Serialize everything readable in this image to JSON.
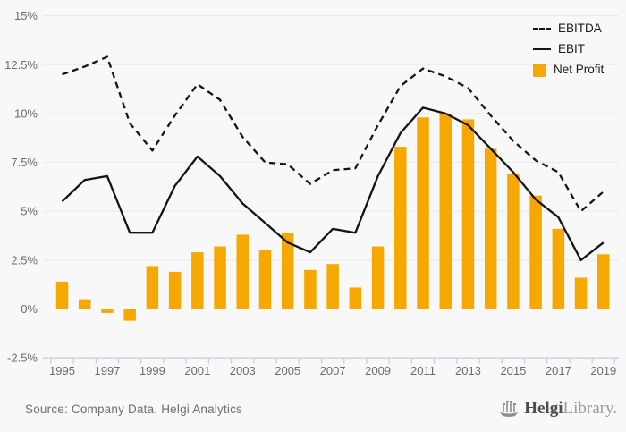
{
  "chart_data": {
    "type": "bar",
    "subtype": "combo-bar-line",
    "title": "",
    "x": [
      1995,
      1996,
      1997,
      1998,
      1999,
      2000,
      2001,
      2002,
      2003,
      2004,
      2005,
      2006,
      2007,
      2008,
      2009,
      2010,
      2011,
      2012,
      2013,
      2014,
      2015,
      2016,
      2017,
      2018,
      2019
    ],
    "series": [
      {
        "name": "EBITDA",
        "type": "line",
        "style": "dashed",
        "color": "#141414",
        "values": [
          12.0,
          12.4,
          12.9,
          9.5,
          8.1,
          9.9,
          11.5,
          10.7,
          8.8,
          7.5,
          7.4,
          6.4,
          7.1,
          7.2,
          9.4,
          11.4,
          12.3,
          11.9,
          11.3,
          9.9,
          8.6,
          7.6,
          7.0,
          5.0,
          6.0
        ]
      },
      {
        "name": "EBIT",
        "type": "line",
        "style": "solid",
        "color": "#141414",
        "values": [
          5.5,
          6.6,
          6.8,
          3.9,
          3.9,
          6.3,
          7.8,
          6.8,
          5.4,
          4.4,
          3.4,
          2.9,
          4.1,
          3.9,
          6.8,
          9.0,
          10.3,
          10.0,
          9.4,
          8.2,
          7.0,
          5.6,
          4.7,
          2.5,
          3.4
        ]
      },
      {
        "name": "Net Profit",
        "type": "bar",
        "color": "#F7A800",
        "values": [
          1.4,
          0.5,
          -0.2,
          -0.6,
          2.2,
          1.9,
          2.9,
          3.2,
          3.8,
          3.0,
          3.9,
          2.0,
          2.3,
          1.1,
          3.2,
          8.3,
          9.8,
          10.0,
          9.7,
          8.2,
          6.9,
          5.8,
          4.1,
          1.6,
          2.8
        ]
      }
    ],
    "ylim": [
      -2.5,
      15
    ],
    "ytick_values": [
      15,
      12.5,
      10,
      7.5,
      5,
      2.5,
      0,
      -2.5
    ],
    "ytick_labels": [
      "15%",
      "12.5%",
      "10%",
      "7.5%",
      "5%",
      "2.5%",
      "0%",
      "-2.5%"
    ],
    "xtick_labels": [
      "1995",
      "1997",
      "1999",
      "2001",
      "2003",
      "2005",
      "2007",
      "2009",
      "2011",
      "2013",
      "2015",
      "2017",
      "2019"
    ],
    "grid": "horizontal",
    "legend_position": "top-right"
  },
  "legend": {
    "ebitda_label": "EBITDA",
    "ebit_label": "EBIT",
    "net_profit_label": "Net Profit"
  },
  "footer": {
    "source": "Source: Company Data, Helgi Analytics",
    "logo_bold": "Helgi",
    "logo_light": "Library."
  },
  "colors": {
    "background": "#f8f8f8",
    "bar": "#F7A800",
    "line": "#141414",
    "gridline": "#e9e9e9",
    "axis": "#c3cbdc",
    "tick_text": "#6b6b6b",
    "source_text": "#6f6f6f"
  }
}
